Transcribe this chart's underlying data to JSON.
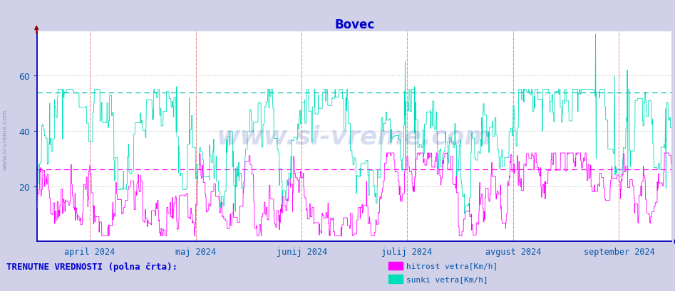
{
  "title": "Bovec",
  "title_color": "#0000cc",
  "bg_color": "#d0d0e8",
  "plot_bg_color": "#ffffff",
  "ylim": [
    0,
    76
  ],
  "yticks": [
    20,
    40,
    60
  ],
  "grid_color": "#bbbbbb",
  "axis_color": "#0000bb",
  "tick_color": "#0055aa",
  "watermark": "www.si-vreme.com",
  "watermark_color": "#2244aa",
  "watermark_alpha": 0.18,
  "line1_color": "#ff00ff",
  "line1_label": "hitrost vetra[Km/h]",
  "line1_avg": 26.0,
  "line2_color": "#00ddbb",
  "line2_label": "sunki vetra[Km/h]",
  "line2_avg": 54.0,
  "line2_avg_color": "#00bbaa",
  "vline_color": "#ee4444",
  "vline_alpha": 0.5,
  "month_labels": [
    "april 2024",
    "maj 2024",
    "junij 2024",
    "julij 2024",
    "avgust 2024",
    "september 2024"
  ],
  "month_positions": [
    0.083,
    0.25,
    0.417,
    0.583,
    0.75,
    0.917
  ],
  "footer_text": "TRENUTNE VREDNOSTI (polna črta):",
  "footer_color": "#0000cc",
  "n_points": 4380,
  "seed": 42
}
